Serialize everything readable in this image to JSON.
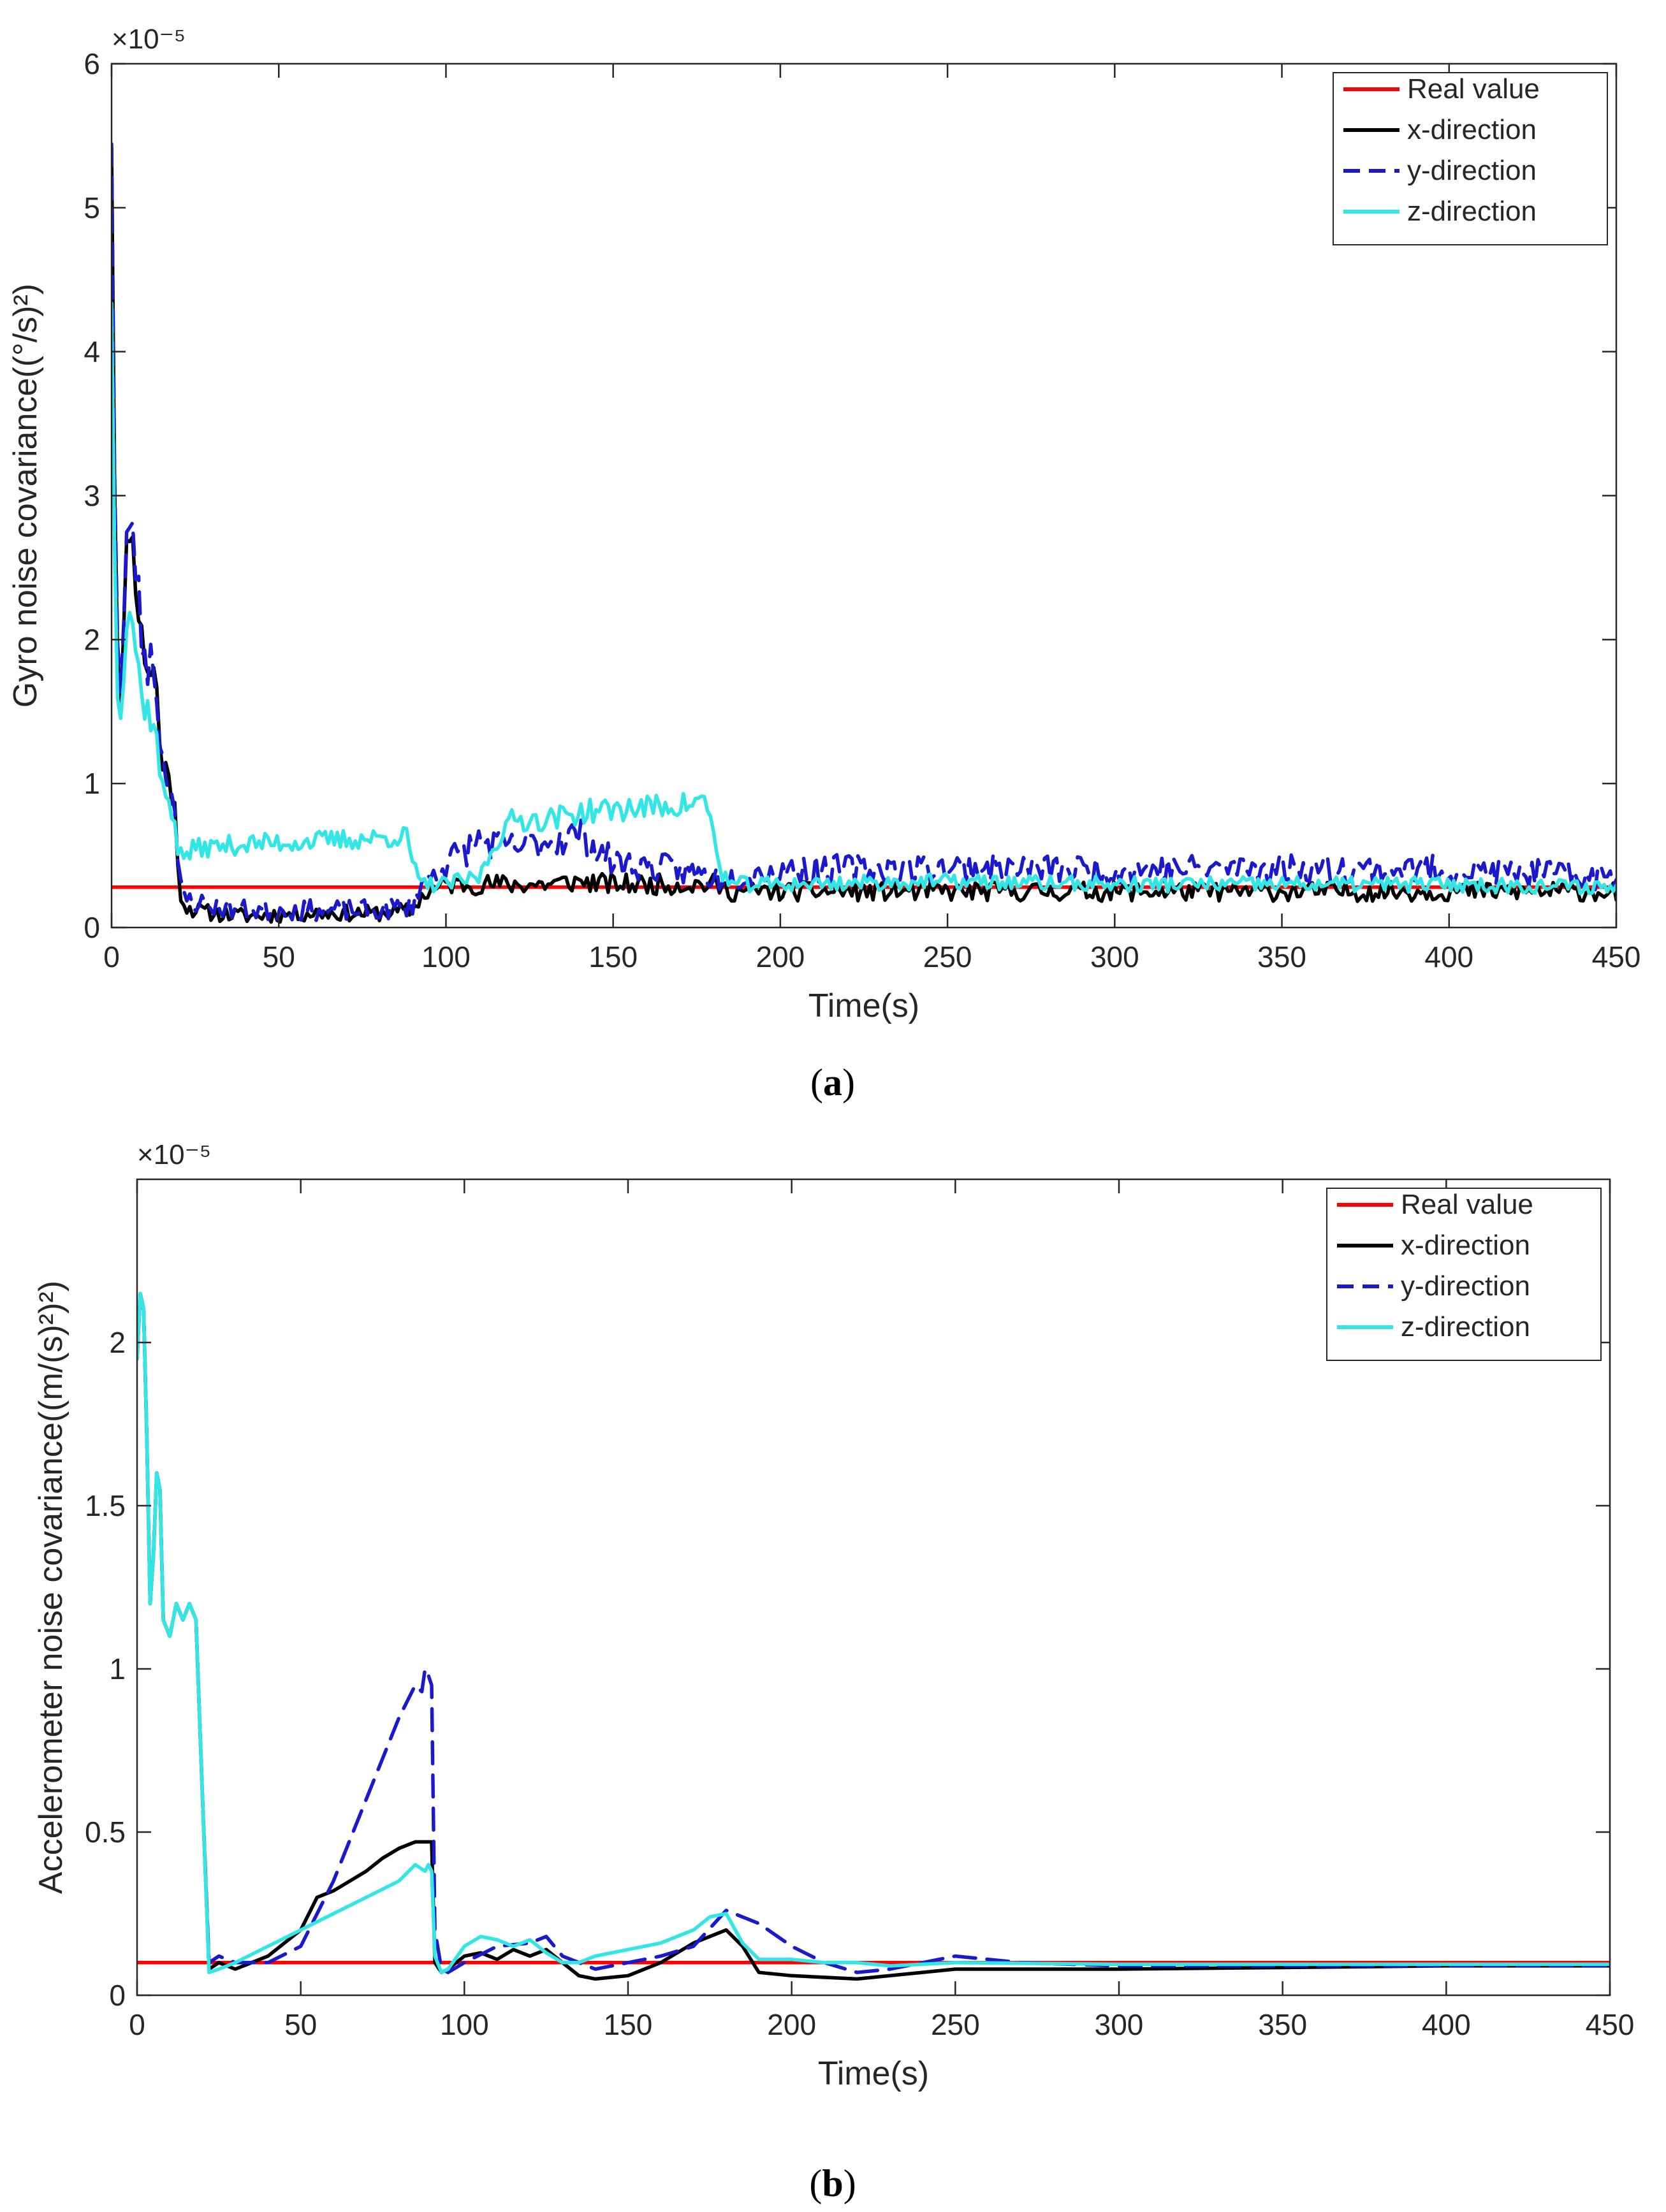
{
  "chart_data": [
    {
      "id": "a",
      "type": "line",
      "caption_label": "a",
      "xlabel": "Time(s)",
      "ylabel": "Gyro noise covariance((°/s)²)",
      "y_multiplier": "×10⁻⁵",
      "xlim": [
        0,
        450
      ],
      "ylim": [
        0,
        6
      ],
      "xticks": [
        0,
        50,
        100,
        150,
        200,
        250,
        300,
        350,
        400,
        450
      ],
      "yticks": [
        0,
        1,
        2,
        3,
        4,
        5,
        6
      ],
      "legend_position": "top-right",
      "series": [
        {
          "name": "Real value",
          "color": "#ff0000",
          "style": "solid",
          "noise": 0,
          "seed": 0,
          "x": [
            0,
            450
          ],
          "y": [
            0.28,
            0.28
          ]
        },
        {
          "name": "x-direction",
          "color": "#000000",
          "style": "solid",
          "noise": 0.08,
          "seed": 11,
          "x": [
            0,
            1,
            2,
            3,
            5,
            7,
            9,
            11,
            13,
            15,
            17,
            19,
            20,
            22,
            25,
            30,
            40,
            60,
            80,
            90,
            92,
            95,
            100,
            110,
            120,
            130,
            140,
            150,
            170,
            180,
            185,
            200,
            250,
            300,
            350,
            400,
            450
          ],
          "y": [
            5.5,
            2.9,
            1.7,
            1.6,
            2.9,
            2.5,
            2.0,
            1.8,
            1.8,
            1.1,
            1.1,
            0.8,
            0.3,
            0.15,
            0.12,
            0.1,
            0.08,
            0.1,
            0.1,
            0.12,
            0.2,
            0.25,
            0.3,
            0.3,
            0.3,
            0.3,
            0.32,
            0.3,
            0.3,
            0.3,
            0.25,
            0.25,
            0.25,
            0.25,
            0.25,
            0.25,
            0.25
          ]
        },
        {
          "name": "y-direction",
          "color": "#1a1acc",
          "style": "dashed",
          "noise": 0.1,
          "seed": 23,
          "x": [
            0,
            1,
            2,
            3,
            5,
            7,
            9,
            11,
            13,
            15,
            17,
            19,
            20,
            22,
            25,
            30,
            40,
            60,
            80,
            90,
            92,
            95,
            100,
            110,
            120,
            130,
            140,
            150,
            170,
            180,
            185,
            200,
            250,
            300,
            350,
            400,
            450
          ],
          "y": [
            5.55,
            2.95,
            1.7,
            1.6,
            2.95,
            2.6,
            2.0,
            1.85,
            1.85,
            1.15,
            1.1,
            0.8,
            0.3,
            0.2,
            0.18,
            0.15,
            0.12,
            0.12,
            0.12,
            0.15,
            0.3,
            0.35,
            0.45,
            0.6,
            0.55,
            0.6,
            0.65,
            0.45,
            0.4,
            0.35,
            0.35,
            0.4,
            0.42,
            0.4,
            0.42,
            0.4,
            0.35
          ]
        },
        {
          "name": "z-direction",
          "color": "#33e6e6",
          "style": "solid",
          "noise": 0.06,
          "seed": 37,
          "x": [
            0,
            1,
            2,
            3,
            5,
            7,
            9,
            11,
            13,
            15,
            17,
            19,
            20,
            22,
            25,
            40,
            60,
            80,
            88,
            92,
            95,
            100,
            110,
            115,
            120,
            130,
            140,
            150,
            170,
            178,
            182,
            185,
            200,
            250,
            300,
            350,
            400,
            450
          ],
          "y": [
            4.4,
            2.4,
            1.5,
            1.6,
            2.3,
            2.0,
            1.6,
            1.5,
            1.4,
            0.95,
            0.9,
            0.75,
            0.5,
            0.5,
            0.55,
            0.58,
            0.6,
            0.62,
            0.64,
            0.3,
            0.3,
            0.3,
            0.35,
            0.6,
            0.75,
            0.75,
            0.8,
            0.82,
            0.85,
            0.88,
            0.4,
            0.3,
            0.3,
            0.32,
            0.3,
            0.3,
            0.3,
            0.28
          ]
        }
      ]
    },
    {
      "id": "b",
      "type": "line",
      "caption_label": "b",
      "xlabel": "Time(s)",
      "ylabel": "Accelerometer noise covariance((m/(s)²)²)",
      "y_multiplier": "×10⁻⁵",
      "xlim": [
        0,
        450
      ],
      "ylim": [
        0,
        2.5
      ],
      "xticks": [
        0,
        50,
        100,
        150,
        200,
        250,
        300,
        350,
        400,
        450
      ],
      "yticks": [
        0,
        0.5,
        1,
        1.5,
        2
      ],
      "legend_position": "top-right",
      "series": [
        {
          "name": "Real value",
          "color": "#ff0000",
          "style": "solid",
          "noise": 0,
          "seed": 0,
          "x": [
            0,
            450
          ],
          "y": [
            0.1,
            0.1
          ]
        },
        {
          "name": "x-direction",
          "color": "#000000",
          "style": "solid",
          "noise": 0,
          "seed": 0,
          "x": [
            0,
            1,
            2,
            3,
            4,
            5,
            6,
            7,
            8,
            10,
            12,
            14,
            16,
            18,
            20,
            22,
            25,
            30,
            40,
            50,
            55,
            60,
            65,
            70,
            75,
            80,
            85,
            88,
            89,
            90,
            91,
            93,
            95,
            100,
            105,
            110,
            115,
            120,
            125,
            130,
            135,
            140,
            150,
            160,
            170,
            175,
            180,
            185,
            190,
            200,
            220,
            250,
            300,
            350,
            400,
            450
          ],
          "y": [
            1.95,
            2.15,
            2.1,
            1.7,
            1.2,
            1.35,
            1.6,
            1.55,
            1.15,
            1.1,
            1.2,
            1.15,
            1.2,
            1.15,
            0.6,
            0.08,
            0.1,
            0.08,
            0.12,
            0.2,
            0.3,
            0.32,
            0.35,
            0.38,
            0.42,
            0.45,
            0.47,
            0.47,
            0.47,
            0.47,
            0.1,
            0.07,
            0.08,
            0.12,
            0.13,
            0.11,
            0.14,
            0.12,
            0.14,
            0.1,
            0.06,
            0.05,
            0.06,
            0.1,
            0.16,
            0.18,
            0.2,
            0.15,
            0.07,
            0.06,
            0.05,
            0.08,
            0.08,
            0.085,
            0.09,
            0.09
          ]
        },
        {
          "name": "y-direction",
          "color": "#1a1acc",
          "style": "dashed",
          "noise": 0,
          "seed": 0,
          "x": [
            0,
            1,
            2,
            3,
            4,
            5,
            6,
            7,
            8,
            10,
            12,
            14,
            16,
            18,
            20,
            22,
            25,
            30,
            40,
            50,
            60,
            70,
            80,
            85,
            87,
            88,
            89,
            90,
            91,
            93,
            95,
            100,
            110,
            120,
            125,
            130,
            140,
            150,
            160,
            170,
            180,
            190,
            200,
            210,
            220,
            230,
            250,
            270,
            300,
            350,
            400,
            450
          ],
          "y": [
            1.95,
            2.15,
            2.1,
            1.7,
            1.2,
            1.35,
            1.6,
            1.55,
            1.15,
            1.1,
            1.2,
            1.15,
            1.2,
            1.15,
            0.6,
            0.1,
            0.12,
            0.1,
            0.1,
            0.15,
            0.35,
            0.6,
            0.85,
            0.95,
            0.93,
            1.0,
            0.98,
            0.95,
            0.2,
            0.08,
            0.07,
            0.1,
            0.15,
            0.16,
            0.18,
            0.12,
            0.08,
            0.1,
            0.12,
            0.15,
            0.26,
            0.22,
            0.15,
            0.1,
            0.07,
            0.08,
            0.12,
            0.1,
            0.09,
            0.09,
            0.09,
            0.09
          ]
        },
        {
          "name": "z-direction",
          "color": "#33e6e6",
          "style": "solid",
          "noise": 0,
          "seed": 0,
          "x": [
            0,
            1,
            2,
            3,
            4,
            5,
            6,
            7,
            8,
            10,
            12,
            14,
            16,
            18,
            20,
            22,
            25,
            30,
            40,
            50,
            60,
            70,
            80,
            85,
            88,
            89,
            90,
            91,
            93,
            95,
            100,
            105,
            110,
            115,
            120,
            125,
            130,
            135,
            140,
            150,
            160,
            170,
            175,
            180,
            185,
            190,
            200,
            210,
            220,
            230,
            250,
            300,
            350,
            400,
            450
          ],
          "y": [
            1.95,
            2.15,
            2.1,
            1.7,
            1.2,
            1.35,
            1.6,
            1.55,
            1.15,
            1.1,
            1.2,
            1.15,
            1.2,
            1.15,
            0.6,
            0.07,
            0.08,
            0.1,
            0.15,
            0.2,
            0.25,
            0.3,
            0.35,
            0.4,
            0.38,
            0.4,
            0.38,
            0.12,
            0.07,
            0.08,
            0.15,
            0.18,
            0.17,
            0.15,
            0.17,
            0.13,
            0.1,
            0.1,
            0.12,
            0.14,
            0.16,
            0.2,
            0.24,
            0.25,
            0.16,
            0.11,
            0.11,
            0.1,
            0.1,
            0.09,
            0.1,
            0.095,
            0.095,
            0.095,
            0.095
          ]
        }
      ]
    }
  ]
}
